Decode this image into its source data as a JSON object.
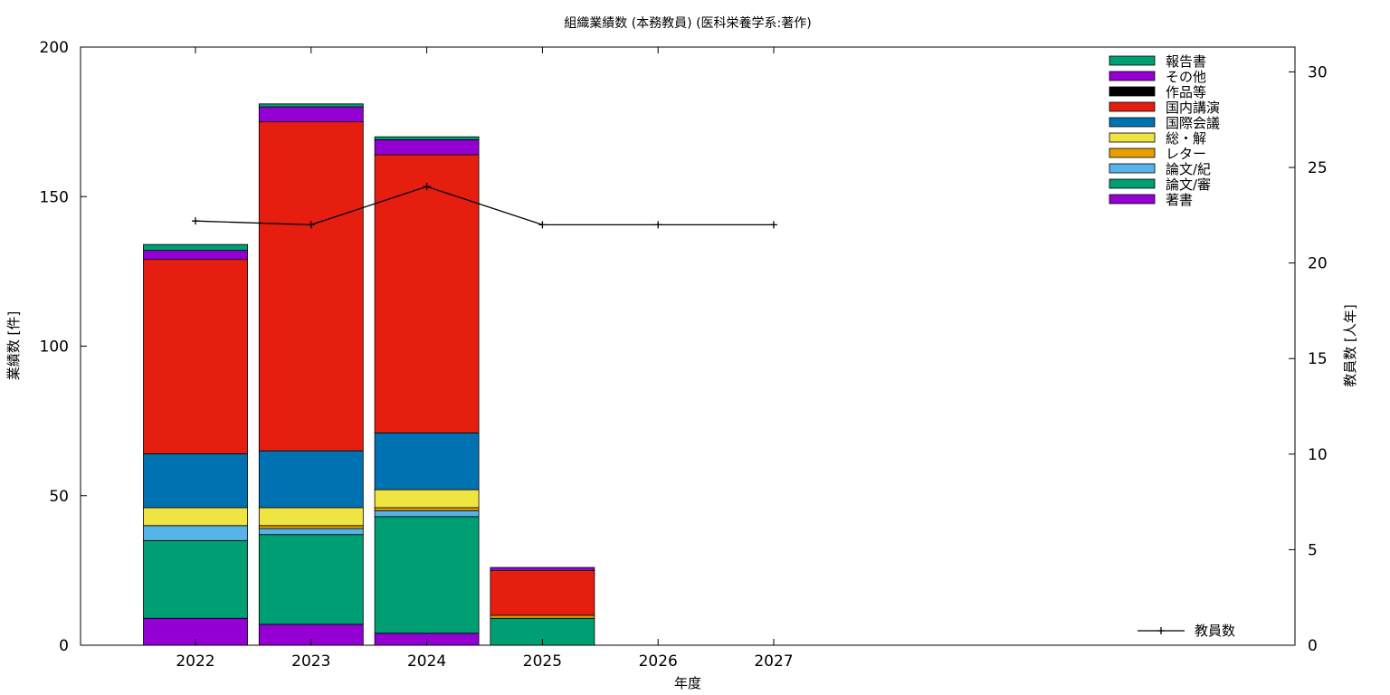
{
  "chart_data": {
    "type": "bar",
    "stacked": true,
    "title": "組織業績数 (本務教員) (医科栄養学系:著作)",
    "xlabel": "年度",
    "ylabel": "業績数 [件]",
    "y2label": "教員数 [人年]",
    "categories": [
      "2022",
      "2023",
      "2024",
      "2025",
      "2026",
      "2027"
    ],
    "ylim": [
      0,
      200
    ],
    "y2lim": [
      0,
      31.3
    ],
    "yticks": [
      0,
      50,
      100,
      150,
      200
    ],
    "y2ticks": [
      0,
      5,
      10,
      15,
      20,
      25,
      30
    ],
    "grid": false,
    "legend_position": "top-right",
    "series": [
      {
        "name": "著書",
        "color": "#9400d3",
        "values": [
          9,
          7,
          4,
          0,
          0,
          0
        ]
      },
      {
        "name": "論文/審",
        "color": "#009e73",
        "values": [
          26,
          30,
          39,
          9,
          0,
          0
        ]
      },
      {
        "name": "論文/紀",
        "color": "#56b4e9",
        "values": [
          5,
          2,
          2,
          0,
          0,
          0
        ]
      },
      {
        "name": "レター",
        "color": "#e69f00",
        "values": [
          0,
          1,
          1,
          1,
          0,
          0
        ]
      },
      {
        "name": "総・解",
        "color": "#f0e442",
        "values": [
          6,
          6,
          6,
          0,
          0,
          0
        ]
      },
      {
        "name": "国際会議",
        "color": "#0072b2",
        "values": [
          18,
          19,
          19,
          0,
          0,
          0
        ]
      },
      {
        "name": "国内講演",
        "color": "#e51e10",
        "values": [
          65,
          110,
          93,
          15,
          0,
          0
        ]
      },
      {
        "name": "作品等",
        "color": "#000000",
        "values": [
          0,
          0,
          0,
          0,
          0,
          0
        ]
      },
      {
        "name": "その他",
        "color": "#9400d3",
        "values": [
          3,
          5,
          5,
          1,
          0,
          0
        ]
      },
      {
        "name": "報告書",
        "color": "#009e73",
        "values": [
          2,
          1,
          1,
          0,
          0,
          0
        ]
      }
    ],
    "line_series": {
      "name": "教員数",
      "axis": "right",
      "color": "#000000",
      "values": [
        22.2,
        22.0,
        24.0,
        22.0,
        22.0,
        22.0
      ]
    }
  }
}
